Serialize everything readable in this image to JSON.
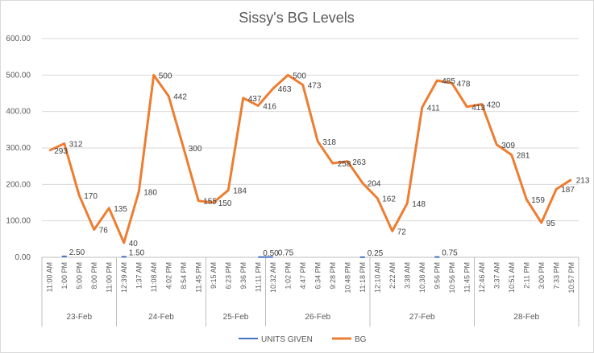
{
  "chart_data": {
    "type": "line",
    "title": "Sissy's BG Levels",
    "ylim": [
      0,
      600
    ],
    "yticks": [
      "0.00",
      "100.00",
      "200.00",
      "300.00",
      "400.00",
      "500.00",
      "600.00"
    ],
    "grid": "horizontal",
    "legend_position": "bottom",
    "x": [
      "11:00 AM",
      "1:00 PM",
      "5:00 PM",
      "8:00 PM",
      "11:00 PM",
      "12:39 AM",
      "1:37 AM",
      "11:08 AM",
      "4:02 PM",
      "8:54 PM",
      "11:45 PM",
      "9:15 AM",
      "6:23 PM",
      "9:36 PM",
      "11:11 PM",
      "10:32 AM",
      "1:02 PM",
      "4:47 PM",
      "6:34 PM",
      "9:28 PM",
      "10:48 PM",
      "11:18 PM",
      "12:10 AM",
      "2:22 AM",
      "3:38 AM",
      "10:38 AM",
      "9:56 PM",
      "10:56 PM",
      "11:45 PM",
      "12:46 AM",
      "3:37 AM",
      "10:51 AM",
      "2:11 PM",
      "3:00 PM",
      "7:33 PM",
      "10:57 PM"
    ],
    "groups": [
      {
        "label": "23-Feb",
        "count": 5
      },
      {
        "label": "24-Feb",
        "count": 6
      },
      {
        "label": "25-Feb",
        "count": 4
      },
      {
        "label": "26-Feb",
        "count": 7
      },
      {
        "label": "27-Feb",
        "count": 7
      },
      {
        "label": "28-Feb",
        "count": 7
      }
    ],
    "series": [
      {
        "name": "UNITS GIVEN",
        "color": "#4472c4",
        "values": [
          null,
          2.5,
          null,
          null,
          null,
          1.5,
          null,
          null,
          null,
          null,
          null,
          null,
          null,
          null,
          0.5,
          0.75,
          null,
          null,
          null,
          null,
          null,
          0.25,
          null,
          null,
          null,
          null,
          0.75,
          null,
          null,
          null,
          null,
          null,
          null,
          null,
          null,
          null
        ],
        "labels": [
          "",
          "2.50",
          "",
          "",
          "",
          "1.50",
          "",
          "",
          "",
          "",
          "",
          "",
          "",
          "",
          "0.50",
          "0.75",
          "",
          "",
          "",
          "",
          "",
          "0.25",
          "",
          "",
          "",
          "",
          "0.75",
          "",
          "",
          "",
          "",
          "",
          "",
          "",
          "",
          ""
        ]
      },
      {
        "name": "BG",
        "color": "#ed7d31",
        "values": [
          293,
          312,
          170,
          76,
          135,
          40,
          180,
          500,
          442,
          300,
          155,
          150,
          184,
          437,
          416,
          463,
          500,
          473,
          318,
          258,
          263,
          204,
          162,
          72,
          148,
          411,
          485,
          478,
          413,
          420,
          309,
          281,
          159,
          95,
          187,
          213
        ],
        "labels": [
          "293",
          "312",
          "170",
          "76",
          "135",
          "40",
          "180",
          "500",
          "442",
          "300",
          "155",
          "150",
          "184",
          "437",
          "416",
          "463",
          "500",
          "473",
          "318",
          "258",
          "263",
          "204",
          "162",
          "72",
          "148",
          "411",
          "485",
          "478",
          "413",
          "420",
          "309",
          "281",
          "159",
          "95",
          "187",
          "213"
        ]
      }
    ]
  }
}
